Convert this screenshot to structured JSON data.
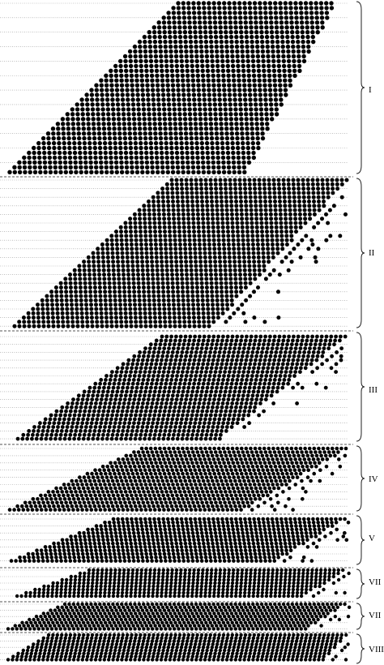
{
  "figure": {
    "kind": "dot-matrix diagram with grouped bands",
    "background": "#ffffff",
    "dot_color": "#000000",
    "guide_line_color": "#9a9a9a",
    "separator_color": "#555555",
    "groups": [
      {
        "label": "I"
      },
      {
        "label": "II"
      },
      {
        "label": "III"
      },
      {
        "label": "IV"
      },
      {
        "label": "V"
      },
      {
        "label": "VII"
      },
      {
        "label": "VII"
      },
      {
        "label": "VIII"
      }
    ]
  }
}
